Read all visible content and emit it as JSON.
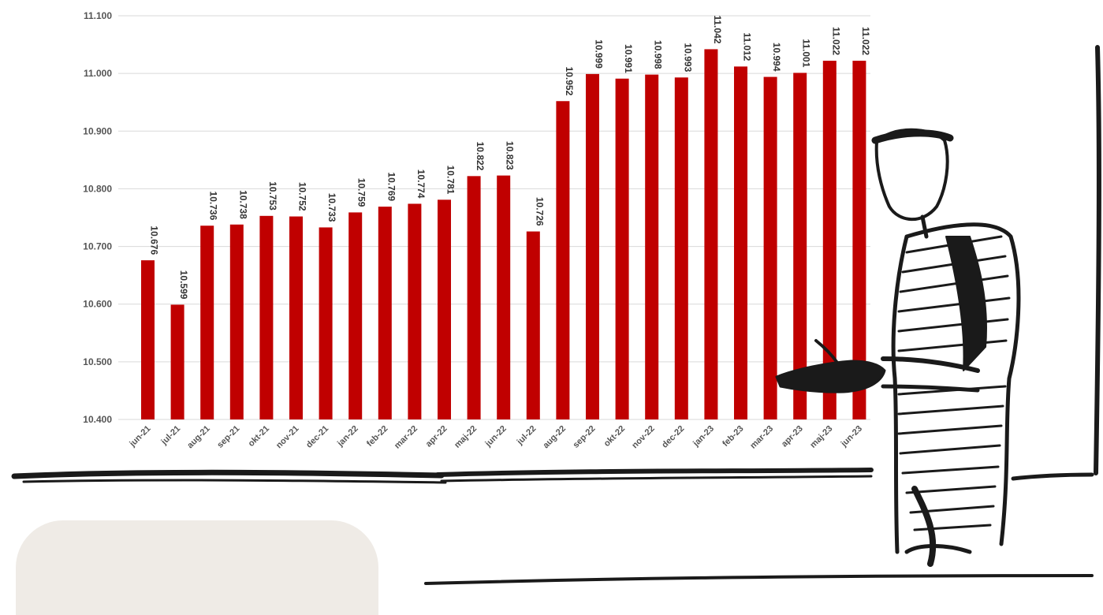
{
  "chart_data": {
    "type": "bar",
    "title": "",
    "xlabel": "",
    "ylabel": "",
    "categories": [
      "jun-21",
      "jul-21",
      "aug-21",
      "sep-21",
      "okt-21",
      "nov-21",
      "dec-21",
      "jan-22",
      "feb-22",
      "mar-22",
      "apr-22",
      "maj-22",
      "jun-22",
      "jul-22",
      "aug-22",
      "sep-22",
      "okt-22",
      "nov-22",
      "dec-22",
      "jan-23",
      "feb-23",
      "mar-23",
      "apr-23",
      "maj-23",
      "jun-23"
    ],
    "values": [
      10676,
      10599,
      10736,
      10738,
      10753,
      10752,
      10733,
      10759,
      10769,
      10774,
      10781,
      10822,
      10823,
      10726,
      10952,
      10999,
      10991,
      10998,
      10993,
      11042,
      11012,
      10994,
      11001,
      11022,
      11022
    ],
    "value_labels": [
      "10.676",
      "10.599",
      "10.736",
      "10.738",
      "10.753",
      "10.752",
      "10.733",
      "10.759",
      "10.769",
      "10.774",
      "10.781",
      "10.822",
      "10.823",
      "10.726",
      "10.952",
      "10.999",
      "10.991",
      "10.998",
      "10.993",
      "11.042",
      "11.012",
      "10.994",
      "11.001",
      "11.022",
      "11.022"
    ],
    "ylim": [
      10400,
      11100
    ],
    "yticks": [
      10400,
      10500,
      10600,
      10700,
      10800,
      10900,
      11000,
      11100
    ],
    "ytick_labels": [
      "10.400",
      "10.500",
      "10.600",
      "10.700",
      "10.800",
      "10.900",
      "11.000",
      "11.100"
    ],
    "grid": true,
    "legend": "none",
    "bar_color": "#c00000"
  },
  "colors": {
    "bar": "#c00000",
    "grid": "#d9d9d9",
    "sketch": "#1a1a1a",
    "card": "#efebe6"
  },
  "decor": {
    "illustration": "sketched-man-pointing-icon"
  }
}
